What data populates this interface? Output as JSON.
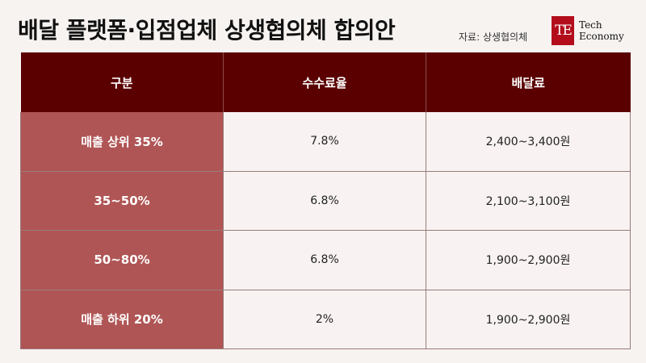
{
  "header": {
    "title": "배달 플랫폼·입점업체 상생협의체 합의안",
    "source": "자료: 상생협의체"
  },
  "logo": {
    "mark": "TE",
    "line1": "Tech",
    "line2": "Economy",
    "color": "#b30d1b"
  },
  "table": {
    "columns": [
      "구분",
      "수수료율",
      "배달료"
    ],
    "rows": [
      {
        "category": "매출 상위 35%",
        "fee_rate": "7.8%",
        "delivery_fee": "2,400~3,400원"
      },
      {
        "category": "35~50%",
        "fee_rate": "6.8%",
        "delivery_fee": "2,100~3,100원"
      },
      {
        "category": "50~80%",
        "fee_rate": "6.8%",
        "delivery_fee": "1,900~2,900원"
      },
      {
        "category": "매출 하위 20%",
        "fee_rate": "2%",
        "delivery_fee": "1,900~2,900원"
      }
    ]
  },
  "colors": {
    "header_bg": "#5b0000",
    "rowhead_bg": "#b05555",
    "cell_bg": "#f8f3f2"
  }
}
